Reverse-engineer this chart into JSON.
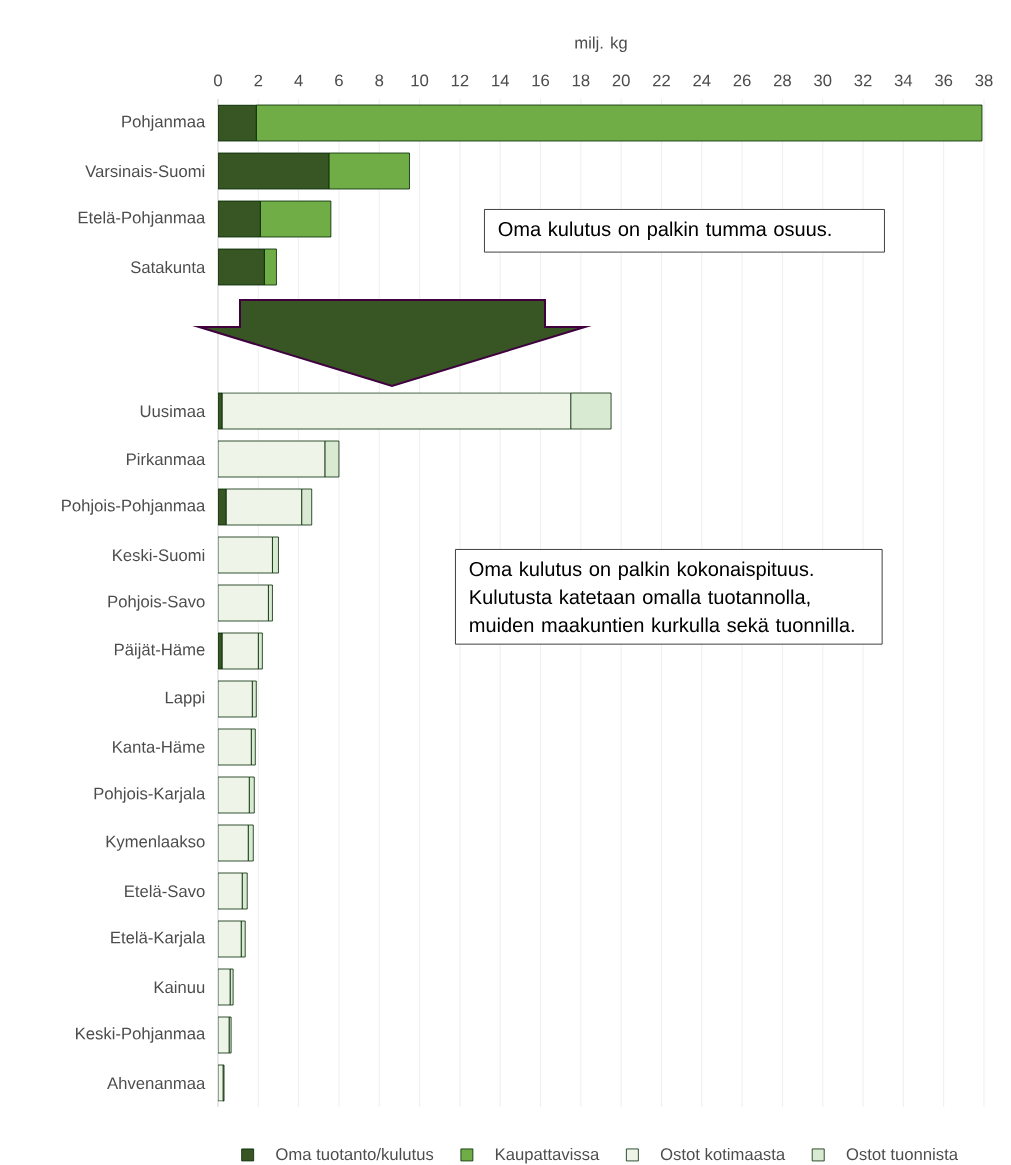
{
  "chart_data": {
    "type": "bar",
    "orientation": "horizontal",
    "stacked": true,
    "xlabel": "milj. kg",
    "categories": [
      "Pohjanmaa",
      "Varsinais-Suomi",
      "Etelä-Pohjanmaa",
      "Satakunta",
      null,
      null,
      "Uusimaa",
      "Pirkanmaa",
      "Pohjois-Pohjanmaa",
      "Keski-Suomi",
      "Pohjois-Savo",
      "Päijät-Häme",
      "Lappi",
      "Kanta-Häme",
      "Pohjois-Karjala",
      "Kymenlaakso",
      "Etelä-Savo",
      "Etelä-Karjala",
      "Kainuu",
      "Keski-Pohjanmaa",
      "Ahvenanmaa"
    ],
    "series": [
      {
        "name": "Oma tuotanto/kulutus",
        "color": "#375623",
        "values": [
          1.9,
          5.5,
          2.1,
          2.3,
          null,
          null,
          0.2,
          0,
          0.4,
          0,
          0,
          0.2,
          0,
          0,
          0,
          0,
          0,
          0,
          0,
          0,
          0
        ]
      },
      {
        "name": "Kaupattavissa",
        "color": "#70ad47",
        "values": [
          36.0,
          4.0,
          3.5,
          0.6,
          null,
          null,
          0,
          0,
          0,
          0,
          0,
          0,
          0,
          0,
          0,
          0,
          0,
          0,
          0,
          0,
          0
        ]
      },
      {
        "name": "Ostot kotimaasta",
        "color": "#eef5e8",
        "values": [
          0,
          0,
          0,
          0,
          null,
          null,
          17.3,
          5.3,
          3.75,
          2.7,
          2.5,
          1.8,
          1.7,
          1.65,
          1.55,
          1.5,
          1.2,
          1.15,
          0.6,
          0.55,
          0.25
        ]
      },
      {
        "name": "Ostot tuonnista",
        "color": "#d9ead3",
        "values": [
          0,
          0,
          0,
          0,
          null,
          null,
          2.0,
          0.7,
          0.5,
          0.3,
          0.2,
          0.2,
          0.2,
          0.2,
          0.25,
          0.25,
          0.25,
          0.2,
          0.15,
          0.1,
          0.05
        ]
      }
    ],
    "xlim": [
      0,
      38
    ],
    "xticks": [
      0,
      2,
      4,
      6,
      8,
      10,
      12,
      14,
      16,
      18,
      20,
      22,
      24,
      26,
      28,
      30,
      32,
      34,
      36,
      38
    ],
    "grid": "x",
    "legend": "bottom",
    "annotations": [
      "Oma kulutus on palkin tumma osuus.",
      "Oma kulutus on palkin kokonaispituus. Kulutusta katetaan omalla tuotannolla, muiden maakuntien kurkulla sekä tuonnilla."
    ]
  }
}
